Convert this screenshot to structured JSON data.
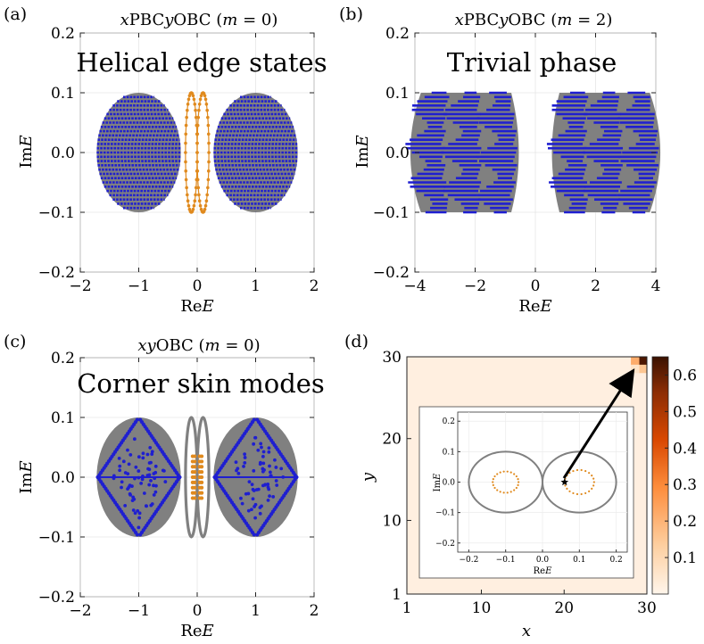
{
  "chart_data": [
    {
      "id": "a",
      "type": "scatter",
      "panel_label": "(a)",
      "title": "xPBCyOBC (m = 0)",
      "annotation": "Helical edge states",
      "xlabel": "ReE",
      "ylabel": "ImE",
      "xlim": [
        -2,
        2
      ],
      "ylim": [
        -0.2,
        0.2
      ],
      "xticks": [
        -2,
        -1,
        0,
        1,
        2
      ],
      "yticks": [
        -0.2,
        -0.1,
        0.0,
        0.1,
        0.2
      ],
      "xtick_labels": [
        "−2",
        "−1",
        "0",
        "1",
        "2"
      ],
      "ytick_labels": [
        "−0.2",
        "−0.1",
        "0.0",
        "0.1",
        "0.2"
      ],
      "series": [
        {
          "name": "bulk",
          "color": "#1f1fd0",
          "shape": "ellipse-rows",
          "centers": [
            -1,
            1
          ],
          "half_width": 0.72,
          "half_height": 0.1,
          "rows": 29
        },
        {
          "name": "edge",
          "color": "#e08a1e",
          "shape": "edge-ellipses",
          "centers": [
            -0.1,
            0.1
          ],
          "half_width": 0.1,
          "half_height": 0.1
        }
      ]
    },
    {
      "id": "b",
      "type": "scatter",
      "panel_label": "(b)",
      "title": "xPBCyOBC (m = 2)",
      "annotation": "Trivial phase",
      "xlabel": "ReE",
      "ylabel": "ImE",
      "xlim": [
        -4,
        4
      ],
      "ylim": [
        -0.2,
        0.2
      ],
      "xticks": [
        -4,
        -2,
        0,
        2,
        4
      ],
      "yticks": [
        -0.2,
        -0.1,
        0.0,
        0.1,
        0.2
      ],
      "xtick_labels": [
        "−4",
        "−2",
        "0",
        "2",
        "4"
      ],
      "ytick_labels": [
        "−0.2",
        "−0.1",
        "0.0",
        "0.1",
        "0.2"
      ],
      "series": [
        {
          "name": "bulk",
          "color": "#1f1fd0",
          "background": "#808080",
          "shape": "barrel-rows",
          "centers": [
            -2.3,
            2.3
          ],
          "inner": 0.8,
          "outer": 3.8,
          "half_height": 0.1,
          "rows": 29
        }
      ]
    },
    {
      "id": "c",
      "type": "scatter",
      "panel_label": "(c)",
      "title": "xyOBC (m = 0)",
      "annotation": "Corner skin modes",
      "xlabel": "ReE",
      "ylabel": "ImE",
      "xlim": [
        -2,
        2
      ],
      "ylim": [
        -0.2,
        0.2
      ],
      "xticks": [
        -2,
        -1,
        0,
        1,
        2
      ],
      "yticks": [
        -0.2,
        -0.1,
        0.0,
        0.1,
        0.2
      ],
      "xtick_labels": [
        "−2",
        "−1",
        "0",
        "1",
        "2"
      ],
      "ytick_labels": [
        "−0.2",
        "−0.1",
        "0.0",
        "0.1",
        "0.2"
      ],
      "series": [
        {
          "name": "pbc-spectrum",
          "color": "#808080",
          "shape": "filled-ellipses",
          "centers": [
            -1,
            1
          ],
          "half_width": 0.72,
          "half_height": 0.1
        },
        {
          "name": "obc-bulk",
          "color": "#1f1fd0",
          "shape": "diamond",
          "centers": [
            -1,
            1
          ],
          "half_width": 0.7,
          "half_height": 0.1
        },
        {
          "name": "edge-loops",
          "color": "#808080",
          "shape": "edge-ellipses",
          "centers": [
            -0.1,
            0.1
          ],
          "half_width": 0.1,
          "half_height": 0.1
        },
        {
          "name": "corner",
          "color": "#e08a1e",
          "shape": "corner-dots",
          "centers": [
            -0.06,
            0.06
          ],
          "half_width": 0.03,
          "half_height": 0.035
        }
      ]
    },
    {
      "id": "d",
      "type": "heatmap",
      "panel_label": "(d)",
      "xlabel": "x",
      "ylabel": "y",
      "xlim": [
        1,
        30
      ],
      "ylim": [
        1,
        30
      ],
      "xticks": [
        1,
        10,
        20,
        30
      ],
      "yticks": [
        1,
        10,
        20,
        30
      ],
      "xtick_labels": [
        "1",
        "10",
        "20",
        "30"
      ],
      "ytick_labels": [
        "1",
        "10",
        "20",
        "30"
      ],
      "colorbar": {
        "min": 0,
        "max": 0.65,
        "ticks": [
          0.1,
          0.2,
          0.3,
          0.4,
          0.5,
          0.6
        ],
        "tick_labels": [
          "0.1",
          "0.2",
          "0.3",
          "0.4",
          "0.5",
          "0.6"
        ],
        "colors": [
          "#fff5eb",
          "#fdd0a2",
          "#fd8d3c",
          "#d94801",
          "#8c2d04",
          "#3a1100"
        ]
      },
      "background_value": 0.02,
      "hot_cells": [
        {
          "x": 30,
          "y": 30,
          "value": 0.62
        },
        {
          "x": 29,
          "y": 30,
          "value": 0.2
        },
        {
          "x": 30,
          "y": 29,
          "value": 0.15
        },
        {
          "x": 29,
          "y": 29,
          "value": 0.06
        }
      ],
      "inset": {
        "xlabel": "ReE",
        "ylabel": "ImE",
        "xlim": [
          -0.23,
          0.23
        ],
        "ylim": [
          -0.23,
          0.23
        ],
        "xticks": [
          -0.2,
          -0.1,
          0.0,
          0.1,
          0.2
        ],
        "yticks": [
          -0.2,
          -0.1,
          0.0,
          0.1,
          0.2
        ],
        "xtick_labels": [
          "−0.2",
          "−0.1",
          "0.0",
          "0.1",
          "0.2"
        ],
        "ytick_labels": [
          "−0.2",
          "−0.1",
          "0.0",
          "0.1",
          "0.2"
        ],
        "circles": [
          {
            "cx": -0.1,
            "cy": 0,
            "r": 0.1,
            "color": "#808080"
          },
          {
            "cx": 0.1,
            "cy": 0,
            "r": 0.1,
            "color": "#808080"
          }
        ],
        "dotted_loops": [
          {
            "cx": -0.1,
            "cy": 0,
            "r": 0.035,
            "color": "#e08a1e"
          },
          {
            "cx": 0.1,
            "cy": 0,
            "r": 0.04,
            "color": "#e08a1e"
          }
        ],
        "star": {
          "x": 0.06,
          "y": 0.0
        }
      }
    }
  ]
}
